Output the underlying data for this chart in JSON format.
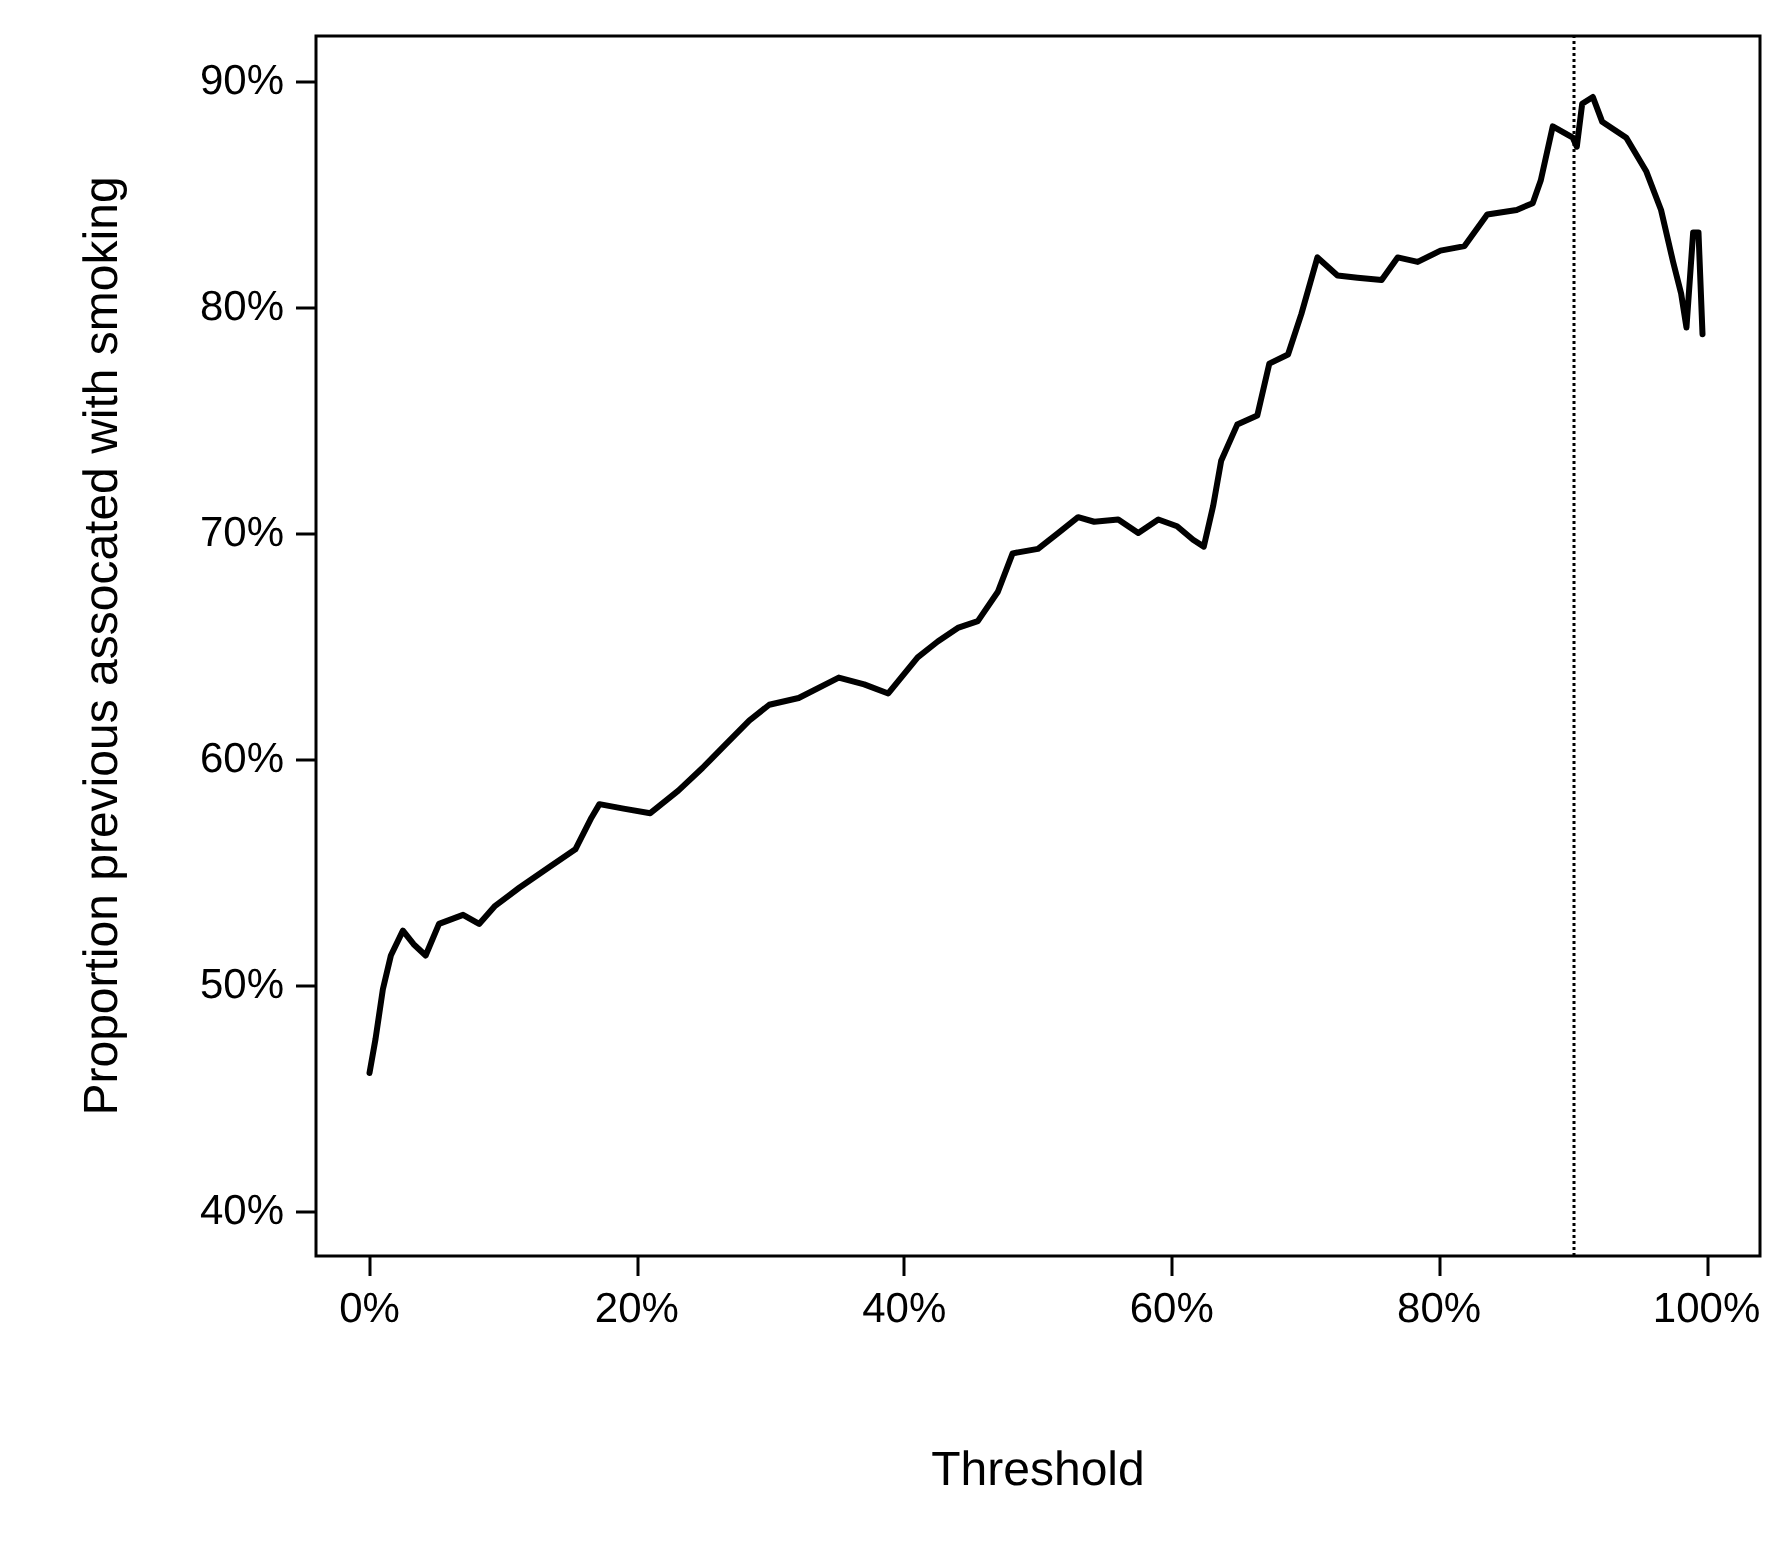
{
  "chart_data": {
    "type": "line",
    "xlabel": "Threshold",
    "ylabel": "Proportion previous assocated with smoking",
    "x": [
      0,
      0.45,
      1.0,
      1.6,
      2.5,
      3.3,
      4.2,
      5.2,
      7.0,
      8.2,
      9.4,
      11.2,
      13.4,
      15.4,
      16.6,
      17.2,
      19.0,
      21.0,
      23.1,
      24.9,
      26.4,
      28.4,
      29.9,
      32.1,
      35.1,
      37.0,
      38.8,
      41.0,
      42.5,
      44.0,
      45.5,
      47.0,
      48.1,
      50.0,
      51.5,
      53.0,
      54.2,
      56.0,
      57.5,
      59.0,
      60.4,
      61.6,
      62.4,
      63.1,
      63.7,
      64.9,
      66.4,
      67.3,
      68.7,
      69.7,
      70.9,
      72.4,
      73.9,
      75.7,
      76.9,
      78.4,
      80.1,
      81.9,
      83.6,
      85.8,
      87.0,
      87.6,
      88.5,
      90.0,
      90.3,
      90.7,
      91.5,
      92.2,
      94.0,
      95.5,
      96.6,
      97.5,
      98.1,
      98.5,
      99.0,
      99.4,
      99.7
    ],
    "series": [
      {
        "color": "#000000",
        "values": [
          46.1,
          47.6,
          49.8,
          51.3,
          52.4,
          51.8,
          51.3,
          52.7,
          53.1,
          52.7,
          53.5,
          54.3,
          55.2,
          56.0,
          57.4,
          58.0,
          57.8,
          57.6,
          58.6,
          59.6,
          60.5,
          61.7,
          62.4,
          62.7,
          63.6,
          63.3,
          62.9,
          64.5,
          65.2,
          65.8,
          66.1,
          67.4,
          69.1,
          69.3,
          70.0,
          70.7,
          70.5,
          70.6,
          70.0,
          70.6,
          70.3,
          69.7,
          69.4,
          71.2,
          73.2,
          74.8,
          75.2,
          77.5,
          77.9,
          79.7,
          82.2,
          81.4,
          81.3,
          81.2,
          82.2,
          82.0,
          82.5,
          82.7,
          84.1,
          84.3,
          84.6,
          85.6,
          88.0,
          87.5,
          87.1,
          89.0,
          89.3,
          88.2,
          87.5,
          86.0,
          84.3,
          82.0,
          80.6,
          79.1,
          83.3,
          83.3,
          78.8
        ]
      }
    ],
    "xlim": [
      -4,
      104
    ],
    "ylim": [
      38,
      92
    ],
    "xticks": [
      {
        "value": 0,
        "label": "0%"
      },
      {
        "value": 20,
        "label": "20%"
      },
      {
        "value": 40,
        "label": "40%"
      },
      {
        "value": 60,
        "label": "60%"
      },
      {
        "value": 80,
        "label": "80%"
      },
      {
        "value": 100,
        "label": "100%"
      }
    ],
    "yticks": [
      {
        "value": 40,
        "label": "40%"
      },
      {
        "value": 50,
        "label": "50%"
      },
      {
        "value": 60,
        "label": "60%"
      },
      {
        "value": 70,
        "label": "70%"
      },
      {
        "value": 80,
        "label": "80%"
      },
      {
        "value": 90,
        "label": "90%"
      }
    ],
    "ref_lines": [
      {
        "axis": "x",
        "value": 90,
        "color": "#000000",
        "line_style": "dotted"
      }
    ],
    "grid": false,
    "marker": "none",
    "line_style": "solid"
  }
}
